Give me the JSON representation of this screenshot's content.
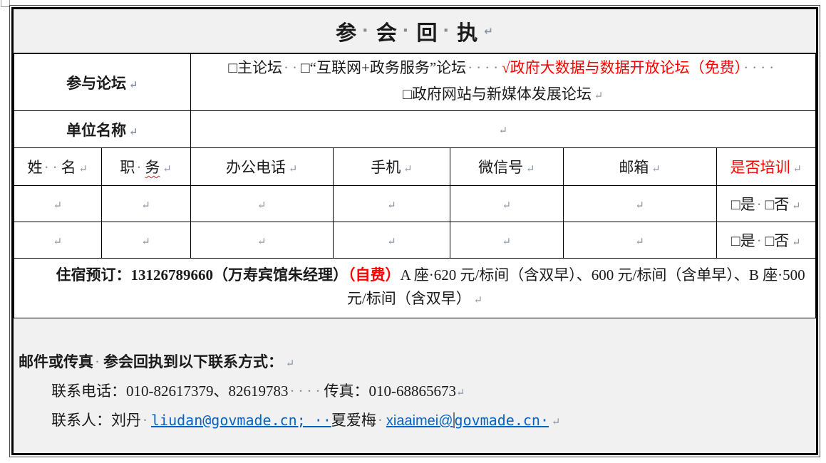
{
  "colors": {
    "accent_red": "#ff0000",
    "link_blue": "#0563c1",
    "shade_gray": "#f1f1f1",
    "border_black": "#000000"
  },
  "title": {
    "segments": [
      {
        "t": "参"
      },
      {
        "t": "·",
        "c": "dots"
      },
      {
        "t": "会"
      },
      {
        "t": "·",
        "c": "dots"
      },
      {
        "t": "回"
      },
      {
        "t": "·",
        "c": "dots"
      },
      {
        "t": "执"
      },
      {
        "t": " ↵",
        "c": "mark"
      }
    ]
  },
  "forum_row": {
    "label_segments": [
      {
        "t": "参与论坛",
        "c": "bold"
      },
      {
        "t": " ↵",
        "c": "mark"
      }
    ],
    "line1": [
      {
        "t": "□主论坛",
        "n": "checkbox-main-forum"
      },
      {
        "t": "··",
        "c": "dots"
      },
      {
        "t": "□“互联网+政务服务”论坛",
        "n": "checkbox-internet-gov-forum"
      },
      {
        "t": "····",
        "c": "dots"
      },
      {
        "t": "√政府大数据与数据开放论坛（免费）",
        "c": "red",
        "n": "checked-bigdata-open-forum"
      },
      {
        "t": "····",
        "c": "dots"
      }
    ],
    "line2": [
      {
        "t": "□政府网站与新媒体发展论坛",
        "n": "checkbox-website-newmedia-forum"
      },
      {
        "t": " ↵",
        "c": "mark"
      }
    ]
  },
  "unit_row": {
    "label_segments": [
      {
        "t": "单位名称",
        "c": "bold"
      },
      {
        "t": " ↵",
        "c": "mark"
      }
    ],
    "value_segments": [
      {
        "t": "↵",
        "c": "mark"
      }
    ]
  },
  "people": {
    "headers": [
      {
        "segs": [
          {
            "t": "姓"
          },
          {
            "t": "··",
            "c": "dots"
          },
          {
            "t": "名"
          },
          {
            "t": " ↵",
            "c": "mark"
          }
        ]
      },
      {
        "segs": [
          {
            "t": "职"
          },
          {
            "t": "·",
            "c": "dots"
          },
          {
            "t": "务",
            "c": "wavy"
          },
          {
            "t": " ↵",
            "c": "mark"
          }
        ]
      },
      {
        "segs": [
          {
            "t": "办公电话"
          },
          {
            "t": " ↵",
            "c": "mark"
          }
        ]
      },
      {
        "segs": [
          {
            "t": "手机"
          },
          {
            "t": " ↵",
            "c": "mark"
          }
        ]
      },
      {
        "segs": [
          {
            "t": "微信号"
          },
          {
            "t": " ↵",
            "c": "mark"
          }
        ]
      },
      {
        "segs": [
          {
            "t": "邮箱"
          },
          {
            "t": " ↵",
            "c": "mark"
          }
        ]
      },
      {
        "segs": [
          {
            "t": "是否培训",
            "c": "red"
          },
          {
            "t": " ↵",
            "c": "mark"
          }
        ]
      }
    ],
    "empty_cell": [
      {
        "t": "↵",
        "c": "mark"
      }
    ],
    "training_cell": [
      {
        "t": "□是",
        "n": "checkbox-training-yes"
      },
      {
        "t": "·",
        "c": "dots"
      },
      {
        "t": "□否",
        "n": "checkbox-training-no"
      },
      {
        "t": " ↵",
        "c": "mark"
      }
    ]
  },
  "hotel": {
    "segments": [
      {
        "t": "住宿预订：13126789660（万寿宾馆朱经理）",
        "c": "bold"
      },
      {
        "t": "（自费）",
        "c": "boldred"
      },
      {
        "t": "A 座·620 元/标间（含双早）、600 元/标间（含单早）、B 座·500 元/标间（含双早）"
      },
      {
        "t": " ↵",
        "c": "mark"
      }
    ]
  },
  "footer": {
    "heading": [
      {
        "t": "邮件或传真",
        "c": "bold"
      },
      {
        "t": "·",
        "c": "dots"
      },
      {
        "t": "参会回执到以下联系方式：",
        "c": "bold"
      },
      {
        "t": " ↵",
        "c": "mark"
      }
    ],
    "phone_line": [
      {
        "t": "联系电话：010-82617379、82619783"
      },
      {
        "t": "····",
        "c": "dots"
      },
      {
        "t": "传真：010-68865673"
      },
      {
        "t": "↵",
        "c": "mark"
      }
    ],
    "contact_line": [
      {
        "t": "联系人：刘丹"
      },
      {
        "t": "·",
        "c": "dots"
      },
      {
        "t": "liudan@govmade.cn; ··",
        "c": "link",
        "n": "liudan-email-link"
      },
      {
        "t": "夏爱梅"
      },
      {
        "t": "·",
        "c": "dots"
      },
      {
        "t": "xiaaimei@",
        "c": "linksans",
        "n": "xiaaimei-email-link"
      },
      {
        "t": "",
        "c": "cursor",
        "n": "text-cursor"
      },
      {
        "t": "govmade.cn·",
        "c": "link",
        "n": "xiaaimei-email-link-tail"
      },
      {
        "t": " ↵",
        "c": "mark"
      }
    ]
  }
}
